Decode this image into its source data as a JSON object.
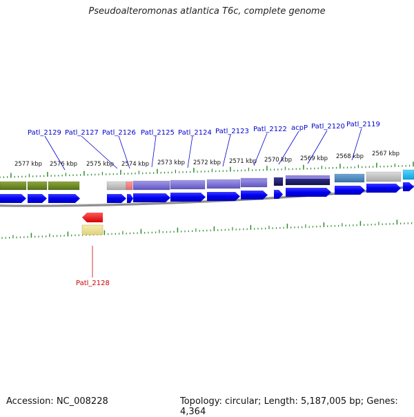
{
  "title": "Pseudoalteromonas atlantica T6c, complete genome",
  "accession": "Accession: NC_008228",
  "summary": "Topology: circular; Length: 5,187,005 bp; Genes: 4,364",
  "colors": {
    "forward_strand": "#0000f2",
    "reverse_strand": "#ee1111",
    "olive_block": "#6f8a28",
    "purple_block": "#7e74d6",
    "gray_block": "#bdbdbd",
    "navy_block": "#1a1a66",
    "tick": "#2e8b2e",
    "label_forward": "#0000cc",
    "label_reverse": "#cc0000",
    "backbone": "#8c8c8c"
  },
  "scale_labels": [
    "2577 kbp",
    "2576 kbp",
    "2575 kbp",
    "2574 kbp",
    "2573 kbp",
    "2572 kbp",
    "2571 kbp",
    "2570 kbp",
    "2569 kbp",
    "2568 kbp",
    "2567 kbp"
  ],
  "gene_labels": [
    {
      "text": "Patl_2129",
      "strand": "forward"
    },
    {
      "text": "Patl_2127",
      "strand": "forward"
    },
    {
      "text": "Patl_2126",
      "strand": "forward"
    },
    {
      "text": "Patl_2125",
      "strand": "forward"
    },
    {
      "text": "Patl_2124",
      "strand": "forward"
    },
    {
      "text": "Patl_2123",
      "strand": "forward"
    },
    {
      "text": "Patl_2122",
      "strand": "forward"
    },
    {
      "text": "acpP",
      "strand": "forward"
    },
    {
      "text": "Patl_2120",
      "strand": "forward"
    },
    {
      "text": "Patl_2119",
      "strand": "forward"
    },
    {
      "text": "Patl_2128",
      "strand": "reverse"
    }
  ]
}
